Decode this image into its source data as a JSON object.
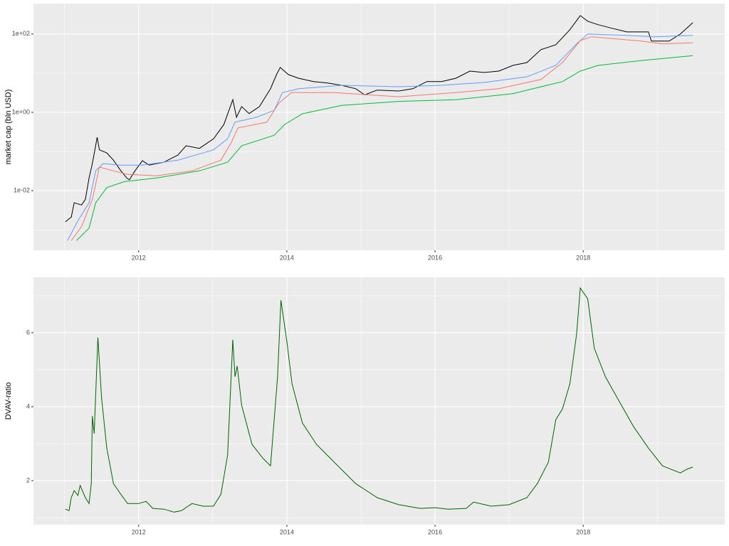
{
  "chart_data": [
    {
      "type": "line",
      "ylabel": "market cap (bln USD)",
      "log_y": true,
      "grid": true,
      "background": "#ebebeb",
      "xlim": [
        2010.58,
        2019.91
      ],
      "xticks": [
        2012,
        2014,
        2016,
        2018
      ],
      "ylim": [
        0.0003,
        600
      ],
      "yticks": [
        {
          "value": 0.01,
          "label": "1e-02"
        },
        {
          "value": 1,
          "label": "1e+00"
        },
        {
          "value": 100,
          "label": "1e+02"
        }
      ],
      "series": [
        {
          "color": "#000000",
          "x": [
            2011.01,
            2011.09,
            2011.13,
            2011.23,
            2011.28,
            2011.33,
            2011.375,
            2011.44,
            2011.47,
            2011.57,
            2011.66,
            2011.76,
            2011.84,
            2011.875,
            2011.95,
            2012.05,
            2012.14,
            2012.34,
            2012.53,
            2012.64,
            2012.82,
            2013.01,
            2013.15,
            2013.27,
            2013.32,
            2013.39,
            2013.49,
            2013.63,
            2013.78,
            2013.86,
            2013.91,
            2014.02,
            2014.16,
            2014.36,
            2014.55,
            2014.74,
            2014.93,
            2015.05,
            2015.22,
            2015.51,
            2015.7,
            2015.89,
            2016.09,
            2016.28,
            2016.47,
            2016.66,
            2016.86,
            2017.05,
            2017.24,
            2017.43,
            2017.63,
            2017.82,
            2017.96,
            2018.06,
            2018.2,
            2018.39,
            2018.59,
            2018.88,
            2018.92,
            2019.16,
            2019.31,
            2019.48
          ],
          "values": [
            0.0016,
            0.0021,
            0.0049,
            0.0043,
            0.006,
            0.021,
            0.049,
            0.23,
            0.11,
            0.092,
            0.06,
            0.032,
            0.021,
            0.019,
            0.032,
            0.058,
            0.045,
            0.053,
            0.081,
            0.14,
            0.12,
            0.21,
            0.49,
            2.1,
            0.75,
            1.4,
            0.93,
            1.4,
            4.0,
            9.2,
            14,
            9.2,
            7.4,
            6.1,
            5.6,
            4.9,
            4.0,
            2.8,
            3.7,
            3.5,
            4.0,
            6.1,
            6.1,
            7.4,
            11.3,
            10.4,
            11.3,
            15.8,
            18.7,
            40,
            53,
            129,
            296,
            213,
            173,
            140,
            113,
            113,
            66,
            66,
            100,
            195
          ]
        },
        {
          "color": "#619cff",
          "x": [
            2011.04,
            2011.18,
            2011.33,
            2011.42,
            2011.52,
            2011.76,
            2012.05,
            2012.53,
            2013.01,
            2013.2,
            2013.3,
            2013.59,
            2013.83,
            2013.94,
            2014.16,
            2014.74,
            2015.51,
            2016.09,
            2016.66,
            2017.24,
            2017.63,
            2017.91,
            2018.06,
            2018.59,
            2018.97,
            2019.48
          ],
          "values": [
            0.00053,
            0.0017,
            0.0049,
            0.032,
            0.049,
            0.045,
            0.045,
            0.06,
            0.11,
            0.21,
            0.56,
            0.75,
            1.13,
            3.2,
            4.0,
            4.9,
            4.5,
            4.9,
            5.8,
            8.1,
            15.8,
            56,
            100,
            92,
            85,
            92
          ]
        },
        {
          "color": "#f8766d",
          "x": [
            2011.09,
            2011.23,
            2011.375,
            2011.47,
            2011.66,
            2011.85,
            2012.24,
            2012.72,
            2013.11,
            2013.25,
            2013.34,
            2013.73,
            2013.89,
            2014.06,
            2014.64,
            2015.51,
            2016.28,
            2016.86,
            2017.43,
            2017.72,
            2017.96,
            2018.11,
            2018.78,
            2019.07,
            2019.48
          ],
          "values": [
            0.00053,
            0.0012,
            0.006,
            0.04,
            0.032,
            0.026,
            0.024,
            0.032,
            0.06,
            0.17,
            0.4,
            0.56,
            1.7,
            3.2,
            3.2,
            2.5,
            3.2,
            4.0,
            6.9,
            18.7,
            68,
            85,
            66,
            56,
            60
          ]
        },
        {
          "color": "#00ba38",
          "x": [
            2011.16,
            2011.33,
            2011.42,
            2011.57,
            2011.81,
            2012.24,
            2012.82,
            2013.2,
            2013.39,
            2013.83,
            2013.97,
            2014.21,
            2014.74,
            2015.51,
            2016.28,
            2017.05,
            2017.72,
            2017.96,
            2018.2,
            2018.78,
            2019.48
          ],
          "values": [
            0.00053,
            0.0011,
            0.0049,
            0.012,
            0.017,
            0.021,
            0.032,
            0.053,
            0.14,
            0.26,
            0.49,
            0.92,
            1.5,
            1.9,
            2.1,
            3.0,
            6.1,
            11.3,
            15.8,
            21,
            28
          ]
        }
      ]
    },
    {
      "type": "line",
      "ylabel": "DVAV-ratio",
      "log_y": false,
      "grid": true,
      "background": "#ebebeb",
      "xlim": [
        2010.58,
        2019.91
      ],
      "xticks": [
        2012,
        2014,
        2016,
        2018
      ],
      "ylim": [
        0.81,
        7.5
      ],
      "yticks": [
        2,
        4,
        6
      ],
      "series": [
        {
          "color": "#006400",
          "x": [
            2011.01,
            2011.06,
            2011.09,
            2011.13,
            2011.18,
            2011.21,
            2011.28,
            2011.33,
            2011.36,
            2011.375,
            2011.4,
            2011.45,
            2011.5,
            2011.57,
            2011.66,
            2011.76,
            2011.85,
            2012.0,
            2012.1,
            2012.19,
            2012.34,
            2012.48,
            2012.58,
            2012.72,
            2012.87,
            2013.01,
            2013.11,
            2013.2,
            2013.27,
            2013.3,
            2013.33,
            2013.39,
            2013.53,
            2013.68,
            2013.78,
            2013.875,
            2013.92,
            2014.0,
            2014.07,
            2014.21,
            2014.4,
            2014.64,
            2014.93,
            2015.22,
            2015.51,
            2015.8,
            2016.0,
            2016.18,
            2016.42,
            2016.52,
            2016.76,
            2017.0,
            2017.24,
            2017.38,
            2017.53,
            2017.63,
            2017.72,
            2017.82,
            2017.91,
            2017.96,
            2018.06,
            2018.15,
            2018.3,
            2018.49,
            2018.68,
            2018.88,
            2019.07,
            2019.31,
            2019.4,
            2019.48
          ],
          "values": [
            1.23,
            1.19,
            1.54,
            1.73,
            1.6,
            1.87,
            1.54,
            1.38,
            1.92,
            3.75,
            3.27,
            5.87,
            4.23,
            2.88,
            1.92,
            1.63,
            1.38,
            1.38,
            1.44,
            1.25,
            1.23,
            1.15,
            1.19,
            1.38,
            1.31,
            1.31,
            1.63,
            2.69,
            5.81,
            4.81,
            5.1,
            4.04,
            2.98,
            2.6,
            2.4,
            4.81,
            6.88,
            5.77,
            4.62,
            3.56,
            2.98,
            2.5,
            1.92,
            1.54,
            1.35,
            1.25,
            1.27,
            1.23,
            1.25,
            1.42,
            1.31,
            1.35,
            1.54,
            1.92,
            2.5,
            3.65,
            3.94,
            4.62,
            5.96,
            7.21,
            6.92,
            5.58,
            4.81,
            4.13,
            3.46,
            2.88,
            2.4,
            2.21,
            2.31,
            2.37
          ]
        }
      ]
    }
  ]
}
